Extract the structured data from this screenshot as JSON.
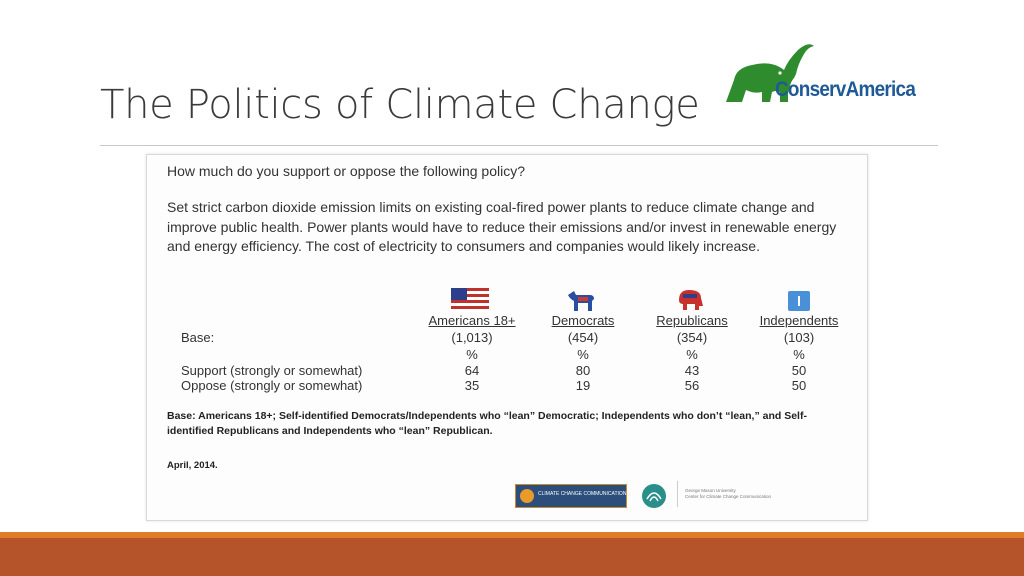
{
  "slide": {
    "title": "The Politics of Climate Change",
    "logo_text": "ConservAmerica",
    "colors": {
      "footer_orange": "#e07b2a",
      "footer_rust": "#b5532a",
      "logo_green": "#2e8b2e",
      "logo_blue": "#1f5a96"
    }
  },
  "survey": {
    "question": "How much do you support or oppose the following policy?",
    "policy_text": "Set strict carbon dioxide emission limits on existing coal-fired power plants to reduce climate change and improve public health. Power plants would have to reduce their emissions and/or invest in renewable energy and energy efficiency. The cost of electricity to consumers and companies would likely increase.",
    "base_label": "Base:",
    "columns": [
      {
        "name": "Americans 18+",
        "base": "(1,013)",
        "unit": "%",
        "support": "64",
        "oppose": "35",
        "icon": "us-flag-icon"
      },
      {
        "name": "Democrats",
        "base": "(454)",
        "unit": "%",
        "support": "80",
        "oppose": "19",
        "icon": "democrat-donkey-icon"
      },
      {
        "name": "Republicans",
        "base": "(354)",
        "unit": "%",
        "support": "43",
        "oppose": "56",
        "icon": "republican-elephant-icon"
      },
      {
        "name": "Independents",
        "base": "(103)",
        "unit": "%",
        "support": "50",
        "oppose": "50",
        "icon": "independent-icon"
      }
    ],
    "rows": {
      "support": "Support (strongly or somewhat)",
      "oppose": "Oppose (strongly or somewhat)"
    },
    "note": "Base: Americans 18+; Self-identified Democrats/Independents who “lean” Democratic; Independents who don’t “lean,” and Self-identified Republicans and Independents who “lean” Republican.",
    "date": "April, 2014.",
    "footer_logos": {
      "yale": "CLIMATE CHANGE COMMUNICATION",
      "gmu_line1": "George Mason University",
      "gmu_line2": "Center for Climate Change Communication"
    }
  }
}
